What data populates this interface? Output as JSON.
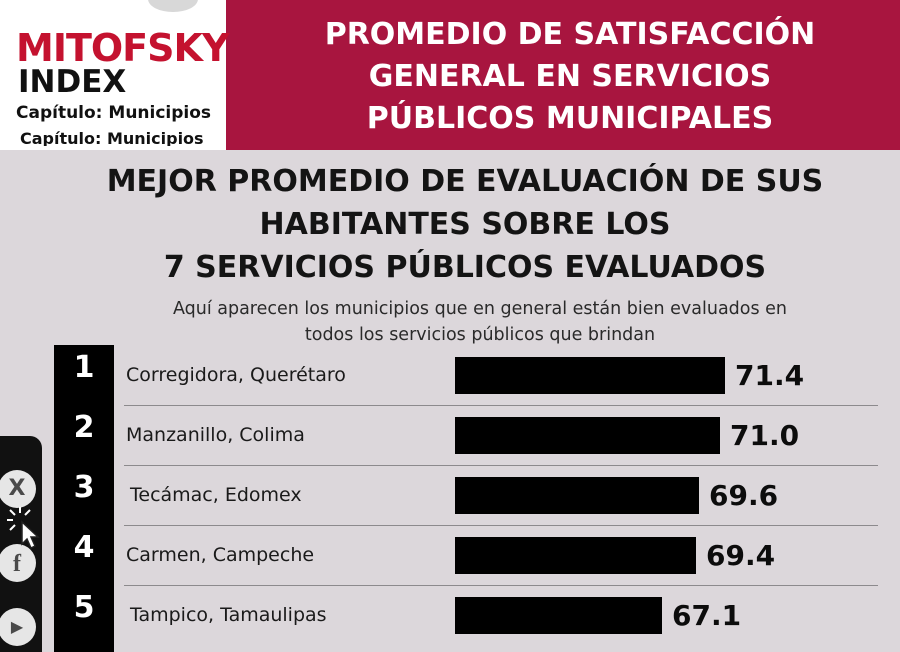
{
  "header": {
    "brand": "MITOFSKY",
    "index_label": "INDEX",
    "chapter": "Capítulo: Municipios",
    "title_lines": [
      "PROMEDIO DE SATISFACCIÓN",
      "GENERAL EN SERVICIOS",
      "PÚBLICOS MUNICIPALES"
    ]
  },
  "main_title_lines": [
    "MEJOR PROMEDIO DE EVALUACIÓN DE SUS",
    "HABITANTES SOBRE LOS",
    "7 SERVICIOS PÚBLICOS EVALUADOS"
  ],
  "subtitle_lines": [
    "Aquí aparecen los municipios que en general están bien evaluados en",
    "todos los servicios públicos que brindan"
  ],
  "chart_data": {
    "type": "bar",
    "orientation": "horizontal",
    "categories": [
      "Corregidora, Querétaro",
      "Manzanillo, Colima",
      "Tecámac, Edomex",
      "Carmen, Campeche",
      "Tampico, Tamaulipas"
    ],
    "ranks": [
      "1",
      "2",
      "3",
      "4",
      "5"
    ],
    "values": [
      71.4,
      71.0,
      69.6,
      69.4,
      67.1
    ],
    "value_labels": [
      "71.4",
      "71.0",
      "69.6",
      "69.4",
      "67.1"
    ],
    "bar_color": "#000000",
    "grid": false
  },
  "colors": {
    "header_bg": "#a8153f",
    "brand_red": "#c4122f",
    "page_bg": "#dcd7db"
  },
  "social": {
    "icons": [
      "x-icon",
      "facebook-icon",
      "youtube-icon"
    ],
    "x_glyph": "X",
    "facebook_glyph": "f",
    "youtube_glyph": "▶"
  }
}
